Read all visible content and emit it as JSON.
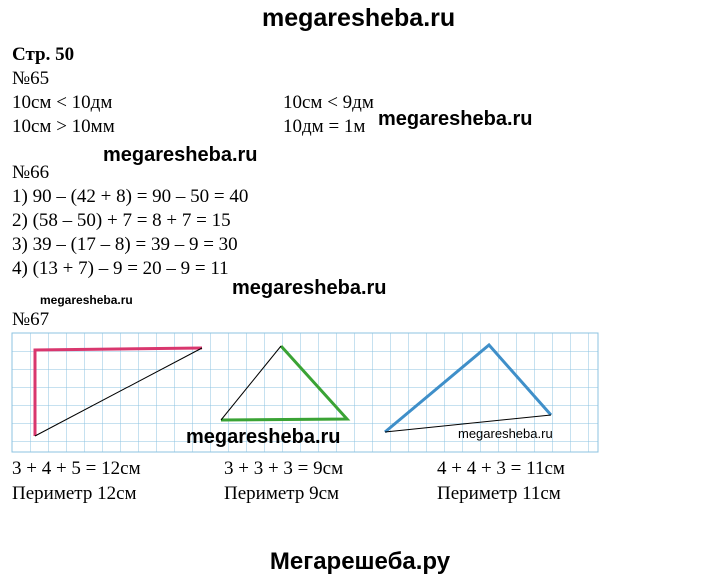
{
  "header": {
    "site": "megaresheba.ru",
    "page": "Стр. 50"
  },
  "tasks": [
    {
      "number": "№65",
      "lines": [
        "10см < 10дм",
        "10см > 10мм",
        "10см < 9дм",
        "10дм = 1м"
      ]
    },
    {
      "number": "№66",
      "lines": [
        "1) 90 – (42 + 8) = 90 – 50 = 40",
        "2) (58 – 50) + 7 = 8 + 7 = 15",
        "3) 39 – (17 – 8) = 39 – 9 = 30",
        "4) (13 + 7) – 9 = 20 – 9 = 11"
      ]
    },
    {
      "number": "№67",
      "lines": [
        "3 + 4 + 5 = 12см",
        "Периметр 12см",
        "3 + 3 + 3 = 9см",
        "Периметр 9см",
        "4 + 4 + 3 = 11см",
        "Периметр 11см"
      ]
    }
  ],
  "watermarks": [
    "megaresheba.ru",
    "megaresheba.ru",
    "megaresheba.ru",
    "megaresheba.ru",
    "megaresheba.ru",
    "megaresheba.ru"
  ],
  "footer": "Мегарешеба.ру"
}
